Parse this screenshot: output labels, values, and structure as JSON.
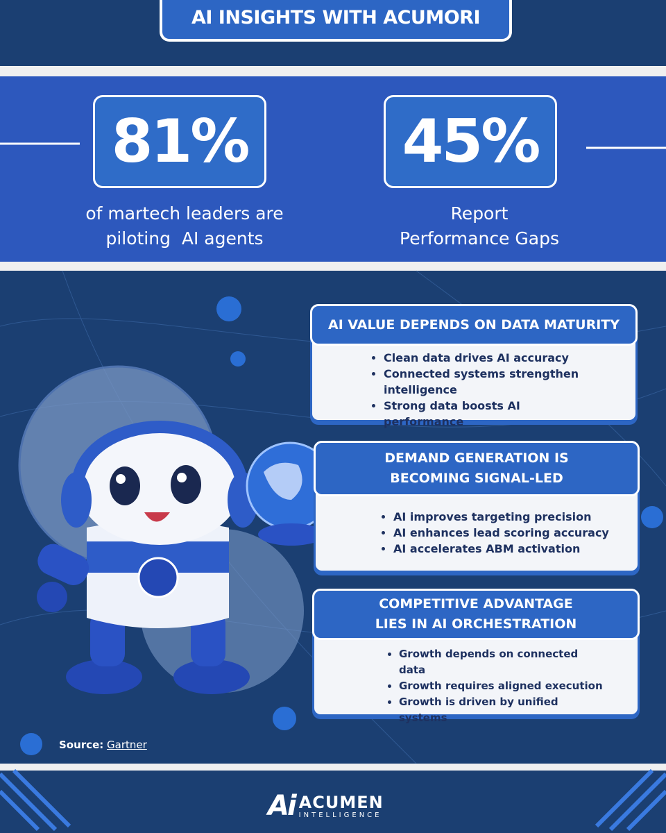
{
  "header": {
    "title": "AI INSIGHTS WITH ACUMORI"
  },
  "stats": [
    {
      "value": "81%",
      "caption": [
        "of martech leaders are",
        "piloting  AI agents"
      ]
    },
    {
      "value": "45%",
      "caption": [
        "Report",
        "Performance Gaps"
      ]
    }
  ],
  "cards": [
    {
      "title": [
        "AI VALUE DEPENDS ON DATA MATURITY"
      ],
      "bullets": [
        "Clean data drives AI accuracy",
        "Connected systems strengthen intelligence",
        "Strong data boosts AI performance"
      ]
    },
    {
      "title": [
        "DEMAND GENERATION IS",
        "BECOMING SIGNAL-LED"
      ],
      "bullets": [
        "AI improves targeting precision",
        "AI enhances lead scoring accuracy",
        "AI accelerates ABM activation"
      ]
    },
    {
      "title": [
        "COMPETITIVE ADVANTAGE",
        "LIES IN AI ORCHESTRATION"
      ],
      "bullets": [
        "Growth depends on connected data",
        "Growth requires aligned execution",
        "Growth is driven by unified systems"
      ]
    }
  ],
  "source": {
    "label": "Source:",
    "name": "Gartner"
  },
  "footer": {
    "logo_mark": "Ai",
    "brand": "ACUMEN",
    "tagline": "INTELLIGENCE"
  }
}
